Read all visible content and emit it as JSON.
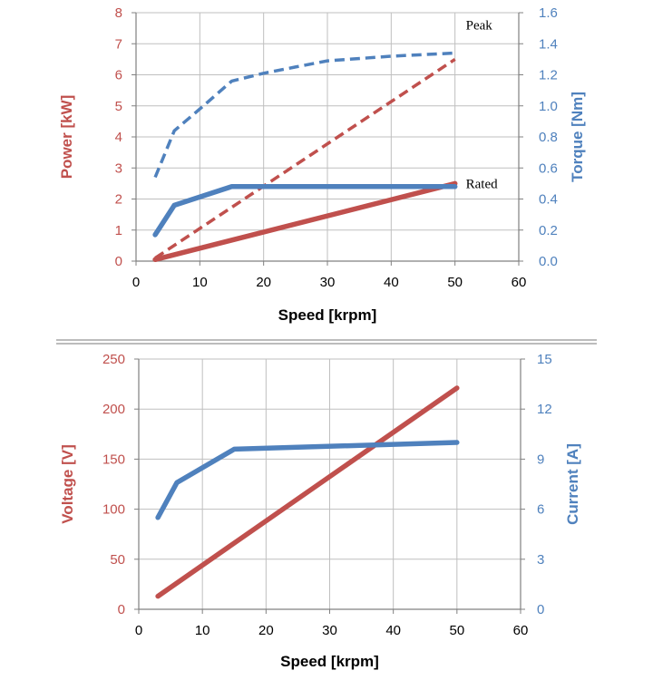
{
  "colors": {
    "red": "#C0504D",
    "blue": "#4F81BD",
    "grid": "#BFBFBF",
    "separator": "#A6A6A6"
  },
  "chart_data": [
    {
      "type": "line",
      "xlabel": "Speed [krpm]",
      "ylabel_left": "Power [kW]",
      "ylabel_right": "Torque [Nm]",
      "xlim": [
        0,
        60
      ],
      "ylim_left": [
        0,
        8
      ],
      "ylim_right": [
        0,
        1.6
      ],
      "x_ticks": [
        "0",
        "10",
        "20",
        "30",
        "40",
        "50",
        "60"
      ],
      "y_ticks_left": [
        "0",
        "1",
        "2",
        "3",
        "4",
        "5",
        "6",
        "7",
        "8"
      ],
      "y_ticks_right": [
        "0.0",
        "0.2",
        "0.4",
        "0.6",
        "0.8",
        "1.0",
        "1.2",
        "1.4",
        "1.6"
      ],
      "grid": true,
      "annotations": [
        {
          "text": "Peak",
          "x": 51.7,
          "y_left": 7.6
        },
        {
          "text": "Rated",
          "x": 51.7,
          "y_left": 2.5
        }
      ],
      "series": [
        {
          "axis": "left",
          "color": "red",
          "style": "dashed",
          "x": [
            3,
            50
          ],
          "values": [
            0.1,
            6.5
          ]
        },
        {
          "axis": "left",
          "color": "red",
          "style": "solid",
          "x": [
            3,
            50
          ],
          "values": [
            0.05,
            2.5
          ]
        },
        {
          "axis": "right",
          "color": "blue",
          "style": "dashed",
          "x": [
            3,
            6,
            10,
            15,
            20,
            25,
            30,
            40,
            50
          ],
          "values": [
            0.54,
            0.84,
            0.98,
            1.16,
            1.21,
            1.25,
            1.29,
            1.32,
            1.34
          ]
        },
        {
          "axis": "right",
          "color": "blue",
          "style": "solid",
          "x": [
            3,
            6,
            15,
            50
          ],
          "values": [
            0.17,
            0.36,
            0.48,
            0.48
          ]
        }
      ]
    },
    {
      "type": "line",
      "xlabel": "Speed [krpm]",
      "ylabel_left": "Voltage [V]",
      "ylabel_right": "Current [A]",
      "xlim": [
        0,
        60
      ],
      "ylim_left": [
        0,
        250
      ],
      "ylim_right": [
        0,
        15
      ],
      "x_ticks": [
        "0",
        "10",
        "20",
        "30",
        "40",
        "50",
        "60"
      ],
      "y_ticks_left": [
        "0",
        "50",
        "100",
        "150",
        "200",
        "250"
      ],
      "y_ticks_right": [
        "0",
        "3",
        "6",
        "9",
        "12",
        "15"
      ],
      "grid": true,
      "annotations": [],
      "series": [
        {
          "axis": "left",
          "color": "red",
          "style": "solid",
          "x": [
            3,
            50
          ],
          "values": [
            13,
            221
          ]
        },
        {
          "axis": "right",
          "color": "blue",
          "style": "solid",
          "x": [
            3,
            6,
            15,
            50
          ],
          "values": [
            5.5,
            7.6,
            9.6,
            10
          ]
        }
      ]
    }
  ]
}
